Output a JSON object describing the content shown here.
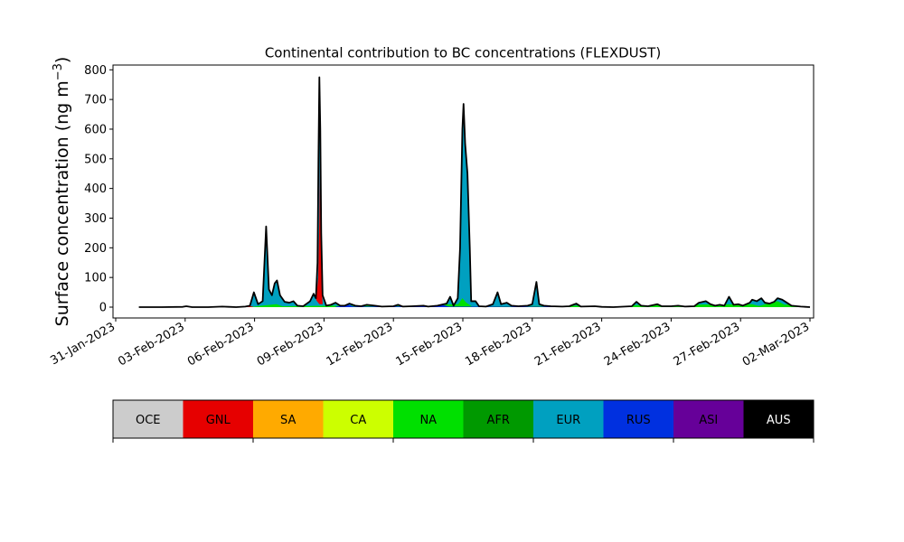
{
  "chart_data": {
    "type": "area",
    "stacked": true,
    "title": "Continental contribution to BC concentrations (FLEXDUST)",
    "ylabel": "Surface concentration (ng m$^{-3}$)",
    "ylabel_main": "Surface concentration (ng m",
    "ylabel_sup": "−3",
    "ylabel_close": ")",
    "xlim": [
      "2023-01-31",
      "2023-03-02"
    ],
    "ylim": [
      0,
      810
    ],
    "x_ticks": [
      "31-Jan-2023",
      "03-Feb-2023",
      "06-Feb-2023",
      "09-Feb-2023",
      "12-Feb-2023",
      "15-Feb-2023",
      "18-Feb-2023",
      "21-Feb-2023",
      "24-Feb-2023",
      "27-Feb-2023",
      "02-Mar-2023"
    ],
    "y_ticks": [
      0,
      100,
      200,
      300,
      400,
      500,
      600,
      700,
      800
    ],
    "series": [
      {
        "name": "GNL",
        "color": "#e60000",
        "points": [
          [
            "2023-02-01",
            0
          ],
          [
            "2023-02-05",
            0
          ],
          [
            "2023-02-05.9",
            3
          ],
          [
            "2023-02-06.3",
            12
          ],
          [
            "2023-02-06.5",
            25
          ],
          [
            "2023-02-06.7",
            2
          ],
          [
            "2023-02-06.95",
            30
          ],
          [
            "2023-02-07.15",
            5
          ],
          [
            "2023-02-07.3",
            0
          ],
          [
            "2023-02-08.4",
            2
          ],
          [
            "2023-02-08.65",
            12
          ],
          [
            "2023-02-08.75",
            100
          ],
          [
            "2023-02-08.8",
            300
          ],
          [
            "2023-02-08.83",
            560
          ],
          [
            "2023-02-08.86",
            300
          ],
          [
            "2023-02-08.9",
            60
          ],
          [
            "2023-02-08.95",
            5
          ],
          [
            "2023-02-09.2",
            2
          ],
          [
            "2023-02-09.5",
            8
          ],
          [
            "2023-02-09.8",
            2
          ],
          [
            "2023-02-10.6",
            6
          ],
          [
            "2023-02-10.8",
            1
          ],
          [
            "2023-02-11",
            0
          ],
          [
            "2023-02-26.5",
            5
          ],
          [
            "2023-02-26.8",
            18
          ],
          [
            "2023-02-27",
            16
          ],
          [
            "2023-02-27.2",
            4
          ],
          [
            "2023-02-28",
            4
          ],
          [
            "2023-02-28.5",
            2
          ],
          [
            "2023-03-01.0",
            8
          ],
          [
            "2023-03-01.3",
            10
          ],
          [
            "2023-03-01.5",
            6
          ],
          [
            "2023-03-01.8",
            2
          ],
          [
            "2023-03-02.0",
            0
          ]
        ]
      },
      {
        "name": "EUR",
        "color": "#00a0c0",
        "points": [
          [
            "2023-02-05.9",
            0
          ],
          [
            "2023-02-06.05",
            15
          ],
          [
            "2023-02-06.5",
            240
          ],
          [
            "2023-02-06.75",
            20
          ],
          [
            "2023-02-06.95",
            45
          ],
          [
            "2023-02-07.4",
            8
          ],
          [
            "2023-02-07.7",
            15
          ],
          [
            "2023-02-08.4",
            5
          ],
          [
            "2023-02-08.6",
            30
          ],
          [
            "2023-02-08.8",
            10
          ],
          [
            "2023-02-14.7",
            20
          ],
          [
            "2023-02-14.85",
            100
          ],
          [
            "2023-02-14.98",
            450
          ],
          [
            "2023-02-15.02",
            560
          ],
          [
            "2023-02-15.1",
            480
          ],
          [
            "2023-02-15.2",
            380
          ],
          [
            "2023-02-15.3",
            150
          ],
          [
            "2023-02-15.4",
            10
          ],
          [
            "2023-02-15.6",
            15
          ],
          [
            "2023-02-16.4",
            10
          ],
          [
            "2023-02-16.55",
            30
          ],
          [
            "2023-02-16.7",
            5
          ],
          [
            "2023-02-17.9",
            2
          ],
          [
            "2023-02-18.05",
            25
          ],
          [
            "2023-02-18.2",
            3
          ],
          [
            "2023-02-18.7",
            2
          ]
        ]
      },
      {
        "name": "NA",
        "color": "#00e000",
        "points": [
          [
            "2023-02-05.8",
            0
          ],
          [
            "2023-02-06.3",
            5
          ],
          [
            "2023-02-06.95",
            10
          ],
          [
            "2023-02-07.2",
            3
          ],
          [
            "2023-02-14.8",
            10
          ],
          [
            "2023-02-14.98",
            30
          ],
          [
            "2023-02-15.15",
            15
          ],
          [
            "2023-02-15.4",
            2
          ],
          [
            "2023-02-27.5",
            10
          ],
          [
            "2023-02-27.8",
            4
          ],
          [
            "2023-02-28.2",
            15
          ],
          [
            "2023-02-28.6",
            20
          ],
          [
            "2023-02-28.9",
            8
          ],
          [
            "2023-03-01.1",
            20
          ],
          [
            "2023-03-01.4",
            12
          ],
          [
            "2023-03-01.7",
            2
          ]
        ]
      },
      {
        "name": "RUS",
        "color": "#0030e0",
        "points": [
          [
            "2023-02-09.5",
            2
          ],
          [
            "2023-02-10.05",
            8
          ],
          [
            "2023-02-10.3",
            2
          ],
          [
            "2023-02-13.8",
            3
          ],
          [
            "2023-02-14.1",
            8
          ],
          [
            "2023-02-14.4",
            2
          ],
          [
            "2023-02-18.6",
            2
          ],
          [
            "2023-02-18.8",
            25
          ],
          [
            "2023-02-18.95",
            5
          ]
        ]
      }
    ],
    "total": [
      [
        "2023-02-01",
        0
      ],
      [
        "2023-02-02",
        0
      ],
      [
        "2023-02-02.9",
        1
      ],
      [
        "2023-02-03.05",
        3
      ],
      [
        "2023-02-03.3",
        0
      ],
      [
        "2023-02-04",
        0
      ],
      [
        "2023-02-04.6",
        2
      ],
      [
        "2023-02-04.9",
        1
      ],
      [
        "2023-02-05.2",
        0
      ],
      [
        "2023-02-05.6",
        2
      ],
      [
        "2023-02-05.8",
        5
      ],
      [
        "2023-02-05.97",
        50
      ],
      [
        "2023-02-06.15",
        10
      ],
      [
        "2023-02-06.35",
        20
      ],
      [
        "2023-02-06.5",
        272
      ],
      [
        "2023-02-06.62",
        60
      ],
      [
        "2023-02-06.75",
        40
      ],
      [
        "2023-02-06.87",
        80
      ],
      [
        "2023-02-06.97",
        90
      ],
      [
        "2023-02-07.1",
        40
      ],
      [
        "2023-02-07.3",
        18
      ],
      [
        "2023-02-07.5",
        15
      ],
      [
        "2023-02-07.68",
        20
      ],
      [
        "2023-02-07.85",
        5
      ],
      [
        "2023-02-08.1",
        3
      ],
      [
        "2023-02-08.4",
        20
      ],
      [
        "2023-02-08.55",
        45
      ],
      [
        "2023-02-08.65",
        30
      ],
      [
        "2023-02-08.72",
        150
      ],
      [
        "2023-02-08.76",
        500
      ],
      [
        "2023-02-08.8",
        775
      ],
      [
        "2023-02-08.84",
        600
      ],
      [
        "2023-02-08.88",
        250
      ],
      [
        "2023-02-08.94",
        40
      ],
      [
        "2023-02-09.1",
        5
      ],
      [
        "2023-02-09.3",
        8
      ],
      [
        "2023-02-09.5",
        15
      ],
      [
        "2023-02-09.7",
        5
      ],
      [
        "2023-02-09.9",
        5
      ],
      [
        "2023-02-10.1",
        12
      ],
      [
        "2023-02-10.35",
        5
      ],
      [
        "2023-02-10.6",
        3
      ],
      [
        "2023-02-10.85",
        8
      ],
      [
        "2023-02-11.2",
        5
      ],
      [
        "2023-02-11.5",
        2
      ],
      [
        "2023-02-12.0",
        3
      ],
      [
        "2023-02-12.2",
        8
      ],
      [
        "2023-02-12.4",
        2
      ],
      [
        "2023-02-12.8",
        3
      ],
      [
        "2023-02-13.3",
        5
      ],
      [
        "2023-02-13.5",
        2
      ],
      [
        "2023-02-13.9",
        5
      ],
      [
        "2023-02-14.3",
        12
      ],
      [
        "2023-02-14.45",
        35
      ],
      [
        "2023-02-14.6",
        5
      ],
      [
        "2023-02-14.78",
        30
      ],
      [
        "2023-02-14.88",
        200
      ],
      [
        "2023-02-14.98",
        600
      ],
      [
        "2023-02-15.03",
        685
      ],
      [
        "2023-02-15.1",
        550
      ],
      [
        "2023-02-15.2",
        450
      ],
      [
        "2023-02-15.3",
        200
      ],
      [
        "2023-02-15.36",
        20
      ],
      [
        "2023-02-15.55",
        20
      ],
      [
        "2023-02-15.7",
        3
      ],
      [
        "2023-02-16.0",
        2
      ],
      [
        "2023-02-16.3",
        10
      ],
      [
        "2023-02-16.5",
        50
      ],
      [
        "2023-02-16.65",
        10
      ],
      [
        "2023-02-16.9",
        15
      ],
      [
        "2023-02-17.1",
        5
      ],
      [
        "2023-02-17.4",
        3
      ],
      [
        "2023-02-17.8",
        5
      ],
      [
        "2023-02-18.0",
        10
      ],
      [
        "2023-02-18.18",
        85
      ],
      [
        "2023-02-18.3",
        10
      ],
      [
        "2023-02-18.5",
        5
      ],
      [
        "2023-02-18.8",
        3
      ],
      [
        "2023-02-19.3",
        2
      ],
      [
        "2023-02-19.6",
        3
      ],
      [
        "2023-02-19.9",
        12
      ],
      [
        "2023-02-20.1",
        2
      ],
      [
        "2023-02-20.7",
        3
      ],
      [
        "2023-02-21.0",
        1
      ],
      [
        "2023-02-21.5",
        0
      ],
      [
        "2023-02-22.3",
        3
      ],
      [
        "2023-02-22.5",
        18
      ],
      [
        "2023-02-22.7",
        5
      ],
      [
        "2023-02-23.0",
        3
      ],
      [
        "2023-02-23.4",
        10
      ],
      [
        "2023-02-23.6",
        3
      ],
      [
        "2023-02-24.0",
        3
      ],
      [
        "2023-02-24.3",
        5
      ],
      [
        "2023-02-24.6",
        2
      ],
      [
        "2023-02-25.0",
        3
      ],
      [
        "2023-02-25.2",
        15
      ],
      [
        "2023-02-25.5",
        20
      ],
      [
        "2023-02-25.7",
        10
      ],
      [
        "2023-02-25.9",
        5
      ],
      [
        "2023-02-26.1",
        8
      ],
      [
        "2023-02-26.3",
        5
      ],
      [
        "2023-02-26.5",
        35
      ],
      [
        "2023-02-26.7",
        8
      ],
      [
        "2023-02-26.9",
        10
      ],
      [
        "2023-02-27.1",
        5
      ],
      [
        "2023-02-27.4",
        15
      ],
      [
        "2023-02-27.5",
        25
      ],
      [
        "2023-02-27.7",
        20
      ],
      [
        "2023-02-27.9",
        30
      ],
      [
        "2023-02-28.05",
        15
      ],
      [
        "2023-02-28.25",
        12
      ],
      [
        "2023-02-28.45",
        18
      ],
      [
        "2023-02-28.6",
        30
      ],
      [
        "2023-02-28.8",
        25
      ],
      [
        "2023-02-29.0",
        15
      ],
      [
        "2023-03-01.2",
        5
      ],
      [
        "2023-03-01.6",
        2
      ],
      [
        "2023-03-02.0",
        0
      ]
    ],
    "legend": [
      {
        "label": "OCE",
        "color": "#cccccc",
        "text_color": "#000000"
      },
      {
        "label": "GNL",
        "color": "#e60000",
        "text_color": "#000000"
      },
      {
        "label": "SA",
        "color": "#ffaa00",
        "text_color": "#000000"
      },
      {
        "label": "CA",
        "color": "#ccff00",
        "text_color": "#000000"
      },
      {
        "label": "NA",
        "color": "#00e000",
        "text_color": "#000000"
      },
      {
        "label": "AFR",
        "color": "#009900",
        "text_color": "#000000"
      },
      {
        "label": "EUR",
        "color": "#00a0c0",
        "text_color": "#000000"
      },
      {
        "label": "RUS",
        "color": "#0030e0",
        "text_color": "#000000"
      },
      {
        "label": "ASI",
        "color": "#660099",
        "text_color": "#000000"
      },
      {
        "label": "AUS",
        "color": "#000000",
        "text_color": "#ffffff"
      }
    ],
    "legend_placement": "bottom"
  }
}
